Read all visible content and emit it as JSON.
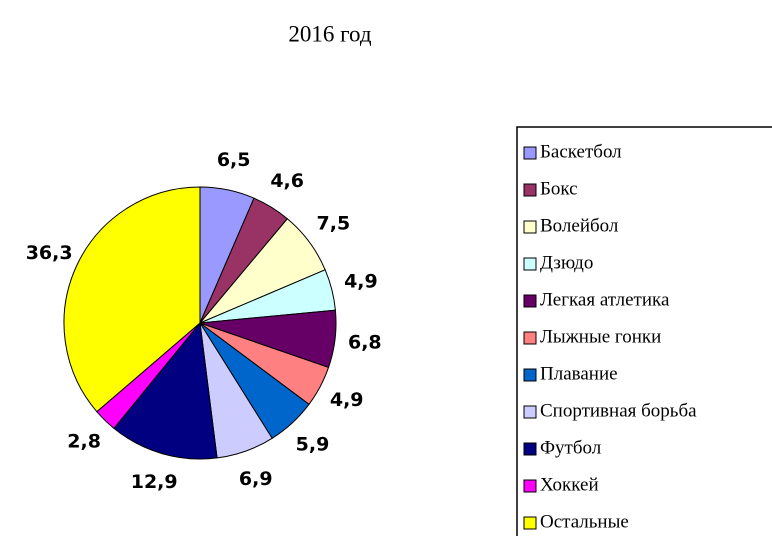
{
  "chart_data": {
    "type": "pie",
    "title": "2016 год",
    "categories": [
      "Баскетбол",
      "Бокс",
      "Волейбол",
      "Дзюдо",
      "Легкая атлетика",
      "Лыжные гонки",
      "Плавание",
      "Спортивная борьба",
      "Футбол",
      "Хоккей",
      "Остальные"
    ],
    "values": [
      6.5,
      4.6,
      7.5,
      4.9,
      6.8,
      4.9,
      5.9,
      6.9,
      12.9,
      2.8,
      36.3
    ],
    "value_labels": [
      "6,5",
      "4,6",
      "7,5",
      "4,9",
      "6,8",
      "4,9",
      "5,9",
      "6,9",
      "12,9",
      "2,8",
      "36,3"
    ],
    "colors": [
      "#9999ff",
      "#993366",
      "#ffffcc",
      "#ccffff",
      "#660066",
      "#ff8080",
      "#0066cc",
      "#ccccff",
      "#000080",
      "#ff00ff",
      "#ffff00"
    ],
    "legend": "right"
  }
}
